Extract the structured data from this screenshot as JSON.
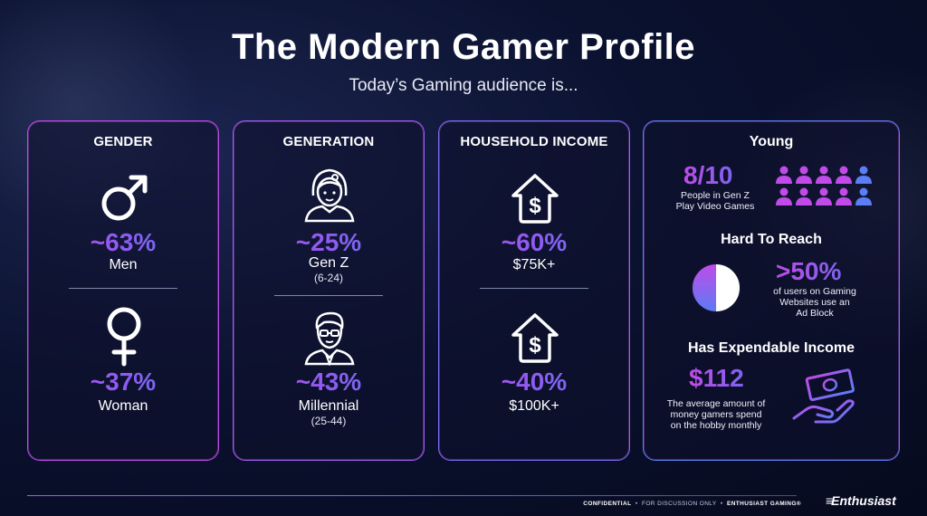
{
  "header": {
    "title": "The Modern Gamer Profile",
    "subtitle": "Today’s Gaming audience is..."
  },
  "gender": {
    "title": "GENDER",
    "men": {
      "icon": "male-symbol-icon",
      "pct": "~63%",
      "label": "Men"
    },
    "women": {
      "icon": "female-symbol-icon",
      "pct": "~37%",
      "label": "Woman"
    }
  },
  "generation": {
    "title": "GENERATION",
    "genz": {
      "icon": "gen-z-person-icon",
      "pct": "~25%",
      "label": "Gen Z",
      "range": "(6-24)"
    },
    "millennial": {
      "icon": "millennial-person-icon",
      "pct": "~43%",
      "label": "Millennial",
      "range": "(25-44)"
    }
  },
  "income": {
    "title": "HOUSEHOLD INCOME",
    "first": {
      "icon": "house-dollar-icon",
      "pct": "~60%",
      "label": "$75K+"
    },
    "second": {
      "icon": "house-dollar-icon",
      "pct": "~40%",
      "label": "$100K+"
    }
  },
  "profile": {
    "young": {
      "title": "Young",
      "stat": "8/10",
      "desc_line1": "People in Gen Z",
      "desc_line2": "Play Video Games",
      "icon": "people-grid-icon",
      "people_total": 10,
      "people_highlighted": 8
    },
    "reach": {
      "title": "Hard To Reach",
      "stat": ">50%",
      "desc_line1": "of users on Gaming",
      "desc_line2": "Websites use an",
      "desc_line3": "Ad Block",
      "icon": "half-circle-chart-icon",
      "fraction": 0.5
    },
    "income": {
      "title": "Has Expendable Income",
      "stat": "$112",
      "desc_line1": "The average amount of",
      "desc_line2": "money gamers spend",
      "desc_line3": "on the hobby monthly",
      "icon": "money-hand-icon"
    }
  },
  "footer": {
    "confidential": "CONFIDENTIAL",
    "discussion": "FOR DISCUSSION ONLY",
    "brand": "ENTHUSIAST GAMING®",
    "logo": "Enthusiast"
  },
  "colors": {
    "accent_pink": "#c04be8",
    "accent_purple": "#8e5bf0",
    "accent_blue": "#5b7df5"
  }
}
